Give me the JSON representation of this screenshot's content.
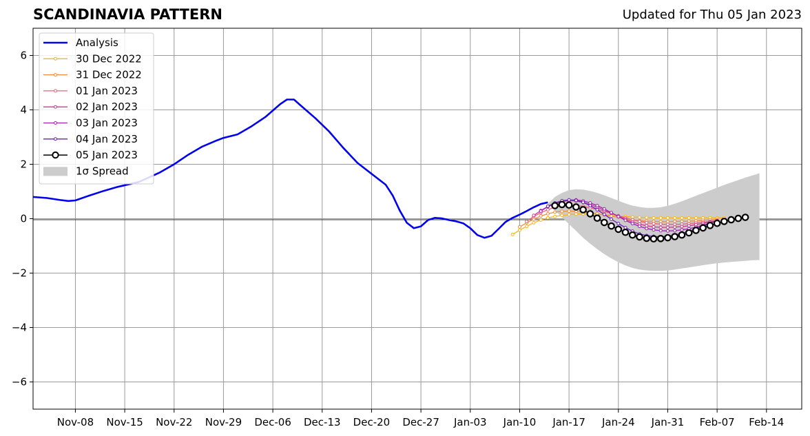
{
  "title": "SCANDINAVIA PATTERN",
  "subtitle": "Updated for Thu 05 Jan 2023",
  "chart_data": {
    "type": "line",
    "title": "SCANDINAVIA PATTERN",
    "subtitle": "Updated for Thu 05 Jan 2023",
    "xlabel": "",
    "ylabel": "",
    "x_range": [
      "2022-11-02",
      "2023-02-19"
    ],
    "ylim": [
      -7,
      7
    ],
    "x_ticks": [
      "Nov-08",
      "Nov-15",
      "Nov-22",
      "Nov-29",
      "Dec-06",
      "Dec-13",
      "Dec-20",
      "Dec-27",
      "Jan-03",
      "Jan-10",
      "Jan-17",
      "Jan-24",
      "Jan-31",
      "Feb-07",
      "Feb-14"
    ],
    "x_tick_dates": [
      "2022-11-08",
      "2022-11-15",
      "2022-11-22",
      "2022-11-29",
      "2022-12-06",
      "2022-12-13",
      "2022-12-20",
      "2022-12-27",
      "2023-01-03",
      "2023-01-10",
      "2023-01-17",
      "2023-01-24",
      "2023-01-31",
      "2023-02-07",
      "2023-02-14"
    ],
    "y_ticks": [
      -6,
      -4,
      -2,
      0,
      2,
      4,
      6
    ],
    "y_tick_labels": [
      "−6",
      "−4",
      "−2",
      "0",
      "2",
      "4",
      "6"
    ],
    "grid": true,
    "zero_line": true,
    "legend_position": "top-left",
    "analysis": {
      "name": "Analysis",
      "color": "#0000ee",
      "points": [
        [
          "2022-11-02",
          0.8
        ],
        [
          "2022-11-04",
          0.76
        ],
        [
          "2022-11-06",
          0.68
        ],
        [
          "2022-11-07",
          0.65
        ],
        [
          "2022-11-08",
          0.67
        ],
        [
          "2022-11-10",
          0.85
        ],
        [
          "2022-11-12",
          1.02
        ],
        [
          "2022-11-14",
          1.17
        ],
        [
          "2022-11-17",
          1.35
        ],
        [
          "2022-11-20",
          1.7
        ],
        [
          "2022-11-22",
          2.0
        ],
        [
          "2022-11-24",
          2.35
        ],
        [
          "2022-11-26",
          2.65
        ],
        [
          "2022-11-28",
          2.87
        ],
        [
          "2022-11-29",
          2.97
        ],
        [
          "2022-12-01",
          3.1
        ],
        [
          "2022-12-03",
          3.4
        ],
        [
          "2022-12-05",
          3.75
        ],
        [
          "2022-12-07",
          4.2
        ],
        [
          "2022-12-08",
          4.38
        ],
        [
          "2022-12-09",
          4.38
        ],
        [
          "2022-12-10",
          4.15
        ],
        [
          "2022-12-12",
          3.7
        ],
        [
          "2022-12-14",
          3.2
        ],
        [
          "2022-12-16",
          2.6
        ],
        [
          "2022-12-18",
          2.05
        ],
        [
          "2022-12-20",
          1.65
        ],
        [
          "2022-12-22",
          1.25
        ],
        [
          "2022-12-23",
          0.85
        ],
        [
          "2022-12-24",
          0.3
        ],
        [
          "2022-12-25",
          -0.15
        ],
        [
          "2022-12-26",
          -0.35
        ],
        [
          "2022-12-27",
          -0.28
        ],
        [
          "2022-12-28",
          -0.05
        ],
        [
          "2022-12-29",
          0.03
        ],
        [
          "2022-12-30",
          0.01
        ],
        [
          "2022-12-31",
          -0.05
        ],
        [
          "2023-01-01",
          -0.1
        ],
        [
          "2023-01-02",
          -0.17
        ],
        [
          "2023-01-03",
          -0.35
        ],
        [
          "2023-01-04",
          -0.6
        ],
        [
          "2023-01-05",
          -0.7
        ],
        [
          "2023-01-06",
          -0.63
        ],
        [
          "2023-01-07",
          -0.38
        ],
        [
          "2023-01-08",
          -0.12
        ],
        [
          "2023-01-09",
          0.03
        ],
        [
          "2023-01-10",
          0.15
        ],
        [
          "2023-01-11",
          0.28
        ],
        [
          "2023-01-12",
          0.42
        ],
        [
          "2023-01-13",
          0.54
        ],
        [
          "2023-01-14",
          0.6
        ]
      ]
    },
    "forecasts": [
      {
        "name": "30 Dec 2022",
        "color": "#f5b61c",
        "start": "2023-01-09",
        "values": [
          -0.58,
          -0.42,
          -0.28,
          -0.15,
          -0.05,
          0.03,
          0.08,
          0.12,
          0.15,
          0.17,
          0.18,
          0.18,
          0.17,
          0.15,
          0.12,
          0.1,
          0.08,
          0.06,
          0.05,
          0.04,
          0.03,
          0.03,
          0.03,
          0.03,
          0.03,
          0.03,
          0.03,
          0.03,
          0.03,
          0.03,
          0.03
        ]
      },
      {
        "name": "31 Dec 2022",
        "color": "#f08c3a",
        "start": "2023-01-10",
        "values": [
          -0.3,
          -0.15,
          -0.02,
          0.1,
          0.18,
          0.24,
          0.27,
          0.28,
          0.27,
          0.25,
          0.22,
          0.18,
          0.14,
          0.1,
          0.05,
          0.0,
          -0.04,
          -0.07,
          -0.09,
          -0.1,
          -0.11,
          -0.11,
          -0.1,
          -0.1,
          -0.09,
          -0.08,
          -0.06,
          -0.04,
          -0.03
        ]
      },
      {
        "name": "01 Jan 2023",
        "color": "#e5607a",
        "start": "2023-01-11",
        "values": [
          -0.1,
          0.08,
          0.22,
          0.33,
          0.42,
          0.47,
          0.49,
          0.48,
          0.45,
          0.4,
          0.34,
          0.27,
          0.19,
          0.11,
          0.03,
          -0.04,
          -0.1,
          -0.15,
          -0.18,
          -0.2,
          -0.21,
          -0.21,
          -0.2,
          -0.18,
          -0.16,
          -0.13,
          -0.1,
          -0.07
        ]
      },
      {
        "name": "02 Jan 2023",
        "color": "#c83a8c",
        "start": "2023-01-12",
        "values": [
          0.12,
          0.3,
          0.45,
          0.56,
          0.63,
          0.66,
          0.65,
          0.6,
          0.52,
          0.42,
          0.31,
          0.2,
          0.09,
          -0.02,
          -0.12,
          -0.2,
          -0.26,
          -0.3,
          -0.32,
          -0.32,
          -0.31,
          -0.29,
          -0.26,
          -0.22,
          -0.17,
          -0.12,
          -0.07
        ]
      },
      {
        "name": "03 Jan 2023",
        "color": "#a020b0",
        "start": "2023-01-13",
        "values": [
          0.28,
          0.44,
          0.56,
          0.64,
          0.68,
          0.69,
          0.65,
          0.58,
          0.48,
          0.36,
          0.22,
          0.08,
          -0.06,
          -0.18,
          -0.28,
          -0.36,
          -0.41,
          -0.44,
          -0.45,
          -0.44,
          -0.41,
          -0.37,
          -0.31,
          -0.24,
          -0.16,
          -0.08
        ]
      },
      {
        "name": "04 Jan 2023",
        "color": "#6a1fb5",
        "start": "2023-01-14",
        "values": [
          0.46,
          0.58,
          0.66,
          0.69,
          0.67,
          0.6,
          0.48,
          0.33,
          0.16,
          -0.02,
          -0.18,
          -0.33,
          -0.46,
          -0.56,
          -0.62,
          -0.65,
          -0.66,
          -0.64,
          -0.6,
          -0.54,
          -0.46,
          -0.37,
          -0.27,
          -0.17
        ]
      }
    ],
    "current_forecast": {
      "name": "05 Jan 2023",
      "color": "#000000",
      "start": "2023-01-15",
      "values": [
        0.48,
        0.52,
        0.5,
        0.43,
        0.33,
        0.18,
        0.02,
        -0.14,
        -0.27,
        -0.39,
        -0.5,
        -0.6,
        -0.67,
        -0.72,
        -0.74,
        -0.73,
        -0.7,
        -0.66,
        -0.6,
        -0.52,
        -0.43,
        -0.34,
        -0.25,
        -0.17,
        -0.1,
        -0.04,
        0.01,
        0.05
      ]
    },
    "spread": {
      "name": "1σ Spread",
      "color": "#cccccc",
      "start": "2023-01-14",
      "upper": [
        0.55,
        0.8,
        0.95,
        1.05,
        1.08,
        1.07,
        1.02,
        0.95,
        0.86,
        0.76,
        0.66,
        0.56,
        0.48,
        0.43,
        0.4,
        0.4,
        0.42,
        0.47,
        0.55,
        0.64,
        0.74,
        0.84,
        0.94,
        1.04,
        1.14,
        1.24,
        1.33,
        1.42,
        1.51,
        1.59,
        1.67
      ],
      "lower": [
        0.55,
        0.3,
        0.05,
        -0.2,
        -0.45,
        -0.7,
        -0.92,
        -1.12,
        -1.3,
        -1.46,
        -1.6,
        -1.72,
        -1.81,
        -1.87,
        -1.9,
        -1.92,
        -1.92,
        -1.9,
        -1.87,
        -1.83,
        -1.79,
        -1.75,
        -1.71,
        -1.67,
        -1.64,
        -1.61,
        -1.59,
        -1.57,
        -1.55,
        -1.53,
        -1.52
      ]
    },
    "legend": [
      "Analysis",
      "30 Dec 2022",
      "31 Dec 2022",
      "01 Jan 2023",
      "02 Jan 2023",
      "03 Jan 2023",
      "04 Jan 2023",
      "05 Jan 2023",
      "1σ Spread"
    ]
  }
}
